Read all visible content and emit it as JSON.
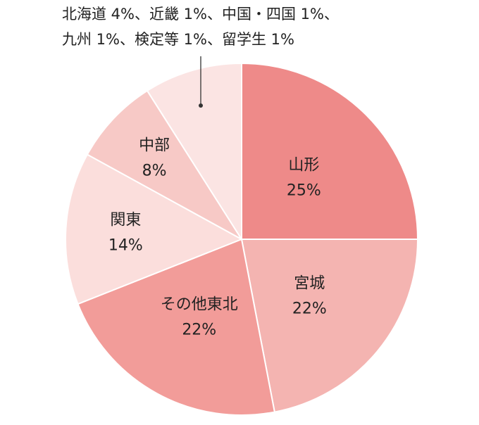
{
  "chart_data": {
    "type": "pie",
    "title": "",
    "start": "12 o'clock",
    "direction": "clockwise",
    "slices": [
      {
        "name": "山形",
        "label_lines": [
          "山形",
          "25%"
        ],
        "value": 25,
        "color": "#ee8a89"
      },
      {
        "name": "宮城",
        "label_lines": [
          "宮城",
          "22%"
        ],
        "value": 22,
        "color": "#f4b4b1"
      },
      {
        "name": "その他東北",
        "label_lines": [
          "その他東北",
          "22%"
        ],
        "value": 22,
        "color": "#f29c99"
      },
      {
        "name": "関東",
        "label_lines": [
          "関東",
          "14%"
        ],
        "value": 14,
        "color": "#fbdedc"
      },
      {
        "name": "中部",
        "label_lines": [
          "中部",
          "8%"
        ],
        "value": 8,
        "color": "#f7c9c6"
      },
      {
        "name": "北海道・近畿・中国・四国・九州・検定等・留学生",
        "value": 9,
        "color": "#fbe4e3"
      }
    ],
    "annotation": {
      "lines": [
        "北海道 4%、近畿 1%、中国・四国 1%、",
        "九州 1%、検定等 1%、留学生 1%"
      ]
    }
  }
}
